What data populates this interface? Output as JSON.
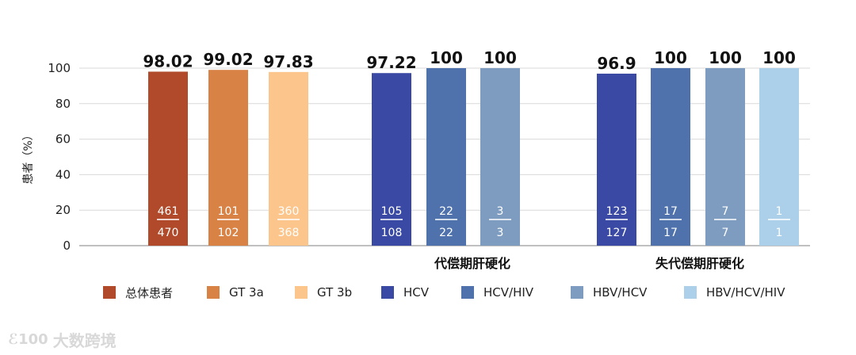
{
  "chart_data": {
    "type": "bar",
    "ylabel": "患者（%）",
    "ylim": [
      0,
      100
    ],
    "yticks": [
      0,
      20,
      40,
      60,
      80,
      100
    ],
    "grid": true,
    "groups": [
      {
        "name": "",
        "bars": [
          {
            "series": "总体患者",
            "value": 98.02,
            "label": "98.02",
            "numerator": "461",
            "denominator": "470"
          },
          {
            "series": "GT 3a",
            "value": 99.02,
            "label": "99.02",
            "numerator": "101",
            "denominator": "102"
          },
          {
            "series": "GT  3b",
            "value": 97.83,
            "label": "97.83",
            "numerator": "360",
            "denominator": "368"
          }
        ]
      },
      {
        "name": "代偿期肝硬化",
        "bars": [
          {
            "series": "HCV",
            "value": 97.22,
            "label": "97.22",
            "numerator": "105",
            "denominator": "108"
          },
          {
            "series": "HCV/HIV",
            "value": 100,
            "label": "100",
            "numerator": "22",
            "denominator": "22"
          },
          {
            "series": "HBV/HCV",
            "value": 100,
            "label": "100",
            "numerator": "3",
            "denominator": "3"
          }
        ]
      },
      {
        "name": "失代偿期肝硬化",
        "bars": [
          {
            "series": "HCV",
            "value": 96.9,
            "label": "96.9",
            "numerator": "123",
            "denominator": "127"
          },
          {
            "series": "HCV/HIV",
            "value": 100,
            "label": "100",
            "numerator": "17",
            "denominator": "17"
          },
          {
            "series": "HBV/HCV",
            "value": 100,
            "label": "100",
            "numerator": "7",
            "denominator": "7"
          },
          {
            "series": "HBV/HCV/HIV",
            "value": 100,
            "label": "100",
            "numerator": "1",
            "denominator": "1"
          }
        ]
      }
    ],
    "legend": {
      "placement": "bottom",
      "entries": [
        {
          "name": "总体患者",
          "color": "#b04a2a"
        },
        {
          "name": "GT 3a",
          "color": "#d88246"
        },
        {
          "name": "GT  3b",
          "color": "#fcc58b"
        },
        {
          "name": "HCV",
          "color": "#3a4aa4"
        },
        {
          "name": "HCV/HIV",
          "color": "#4f72ad"
        },
        {
          "name": "HBV/HCV",
          "color": "#7e9cc0"
        },
        {
          "name": "HBV/HCV/HIV",
          "color": "#acd0ea"
        }
      ]
    }
  },
  "watermark": {
    "logo": "ℰ100",
    "text": "大数跨境"
  }
}
